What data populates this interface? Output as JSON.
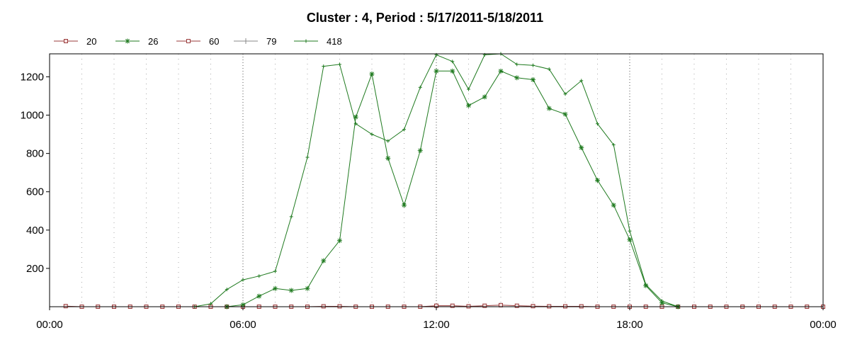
{
  "chart_data": {
    "type": "line",
    "title": "Cluster : 4, Period : 5/17/2011-5/18/2011",
    "xlabel": "",
    "ylabel": "",
    "x_tick_labels": [
      "00:00",
      "06:00",
      "12:00",
      "18:00",
      "00:00"
    ],
    "x_tick_hours": [
      0,
      6,
      12,
      18,
      24
    ],
    "xlim_hours": [
      0,
      24
    ],
    "ylim": [
      0,
      1320
    ],
    "y_ticks": [
      200,
      400,
      600,
      800,
      1000,
      1200
    ],
    "grid": true,
    "legend_position": "top-left",
    "series": [
      {
        "name": "20",
        "color": "#9a3b3b",
        "marker": "square",
        "x": [
          0.5,
          1,
          1.5,
          2,
          2.5,
          3,
          3.5,
          4,
          4.5,
          5,
          5.5,
          6,
          6.5,
          7,
          7.5,
          8,
          8.5,
          9,
          9.5,
          10,
          10.5,
          11,
          11.5,
          12,
          12.5,
          13,
          13.5,
          14,
          14.5,
          15,
          15.5,
          16,
          16.5,
          17,
          17.5,
          18,
          18.5,
          19,
          19.5,
          20,
          20.5,
          21,
          21.5,
          22,
          22.5,
          23,
          23.5,
          24
        ],
        "values": [
          3,
          0,
          0,
          0,
          0,
          0,
          0,
          0,
          0,
          0,
          0,
          0,
          0,
          0,
          0,
          0,
          2,
          2,
          0,
          0,
          0,
          0,
          0,
          5,
          5,
          2,
          5,
          8,
          5,
          3,
          2,
          2,
          2,
          0,
          0,
          0,
          0,
          0,
          0,
          0,
          0,
          0,
          0,
          0,
          0,
          0,
          0,
          0
        ]
      },
      {
        "name": "26",
        "color": "#1f7a1f",
        "marker": "star",
        "x": [
          5.5,
          6,
          6.5,
          7,
          7.5,
          8,
          8.5,
          9,
          9.5,
          10,
          10.5,
          11,
          11.5,
          12,
          12.5,
          13,
          13.5,
          14,
          14.5,
          15,
          15.5,
          16,
          16.5,
          17,
          17.5,
          18,
          18.5,
          19,
          19.5
        ],
        "values": [
          0,
          10,
          55,
          95,
          85,
          95,
          240,
          345,
          990,
          1215,
          775,
          530,
          815,
          1230,
          1230,
          1050,
          1095,
          1230,
          1195,
          1185,
          1035,
          1005,
          830,
          660,
          530,
          350,
          110,
          20,
          0
        ]
      },
      {
        "name": "60",
        "color": "#9a3b3b",
        "marker": "square-outline",
        "x": [],
        "values": []
      },
      {
        "name": "79",
        "color": "#888888",
        "marker": "plus",
        "x": [],
        "values": []
      },
      {
        "name": "418",
        "color": "#1f7a1f",
        "marker": "small-plus",
        "x": [
          4.5,
          5,
          5.5,
          6,
          6.5,
          7,
          7.5,
          8,
          8.5,
          9,
          9.5,
          10,
          10.5,
          11,
          11.5,
          12,
          12.5,
          13,
          13.5,
          14,
          14.5,
          15,
          15.5,
          16,
          16.5,
          17,
          17.5,
          18,
          18.5,
          19,
          19.5
        ],
        "values": [
          0,
          15,
          90,
          140,
          160,
          185,
          470,
          780,
          1255,
          1265,
          955,
          900,
          865,
          925,
          1145,
          1315,
          1280,
          1135,
          1315,
          1320,
          1265,
          1260,
          1240,
          1110,
          1180,
          955,
          845,
          395,
          115,
          30,
          0
        ]
      }
    ]
  }
}
